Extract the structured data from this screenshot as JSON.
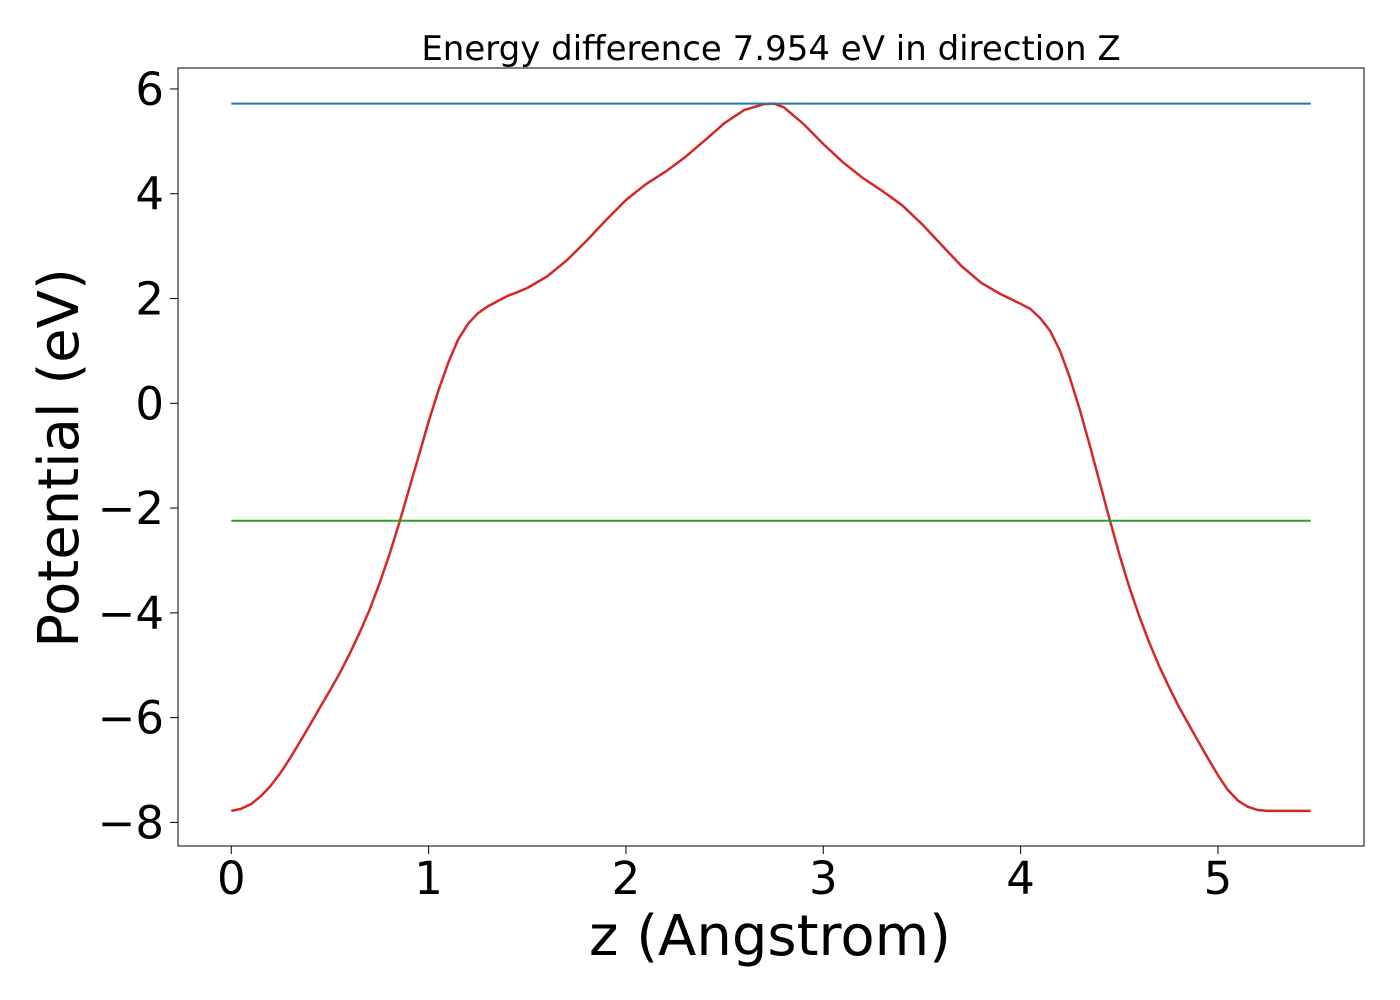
{
  "chart_data": {
    "type": "line",
    "title": "Energy difference 7.954 eV in direction Z",
    "xlabel": "z (Angstrom)",
    "ylabel": "Potential (eV)",
    "xlim": [
      -0.27,
      5.74
    ],
    "ylim": [
      -8.45,
      6.4
    ],
    "xticks": [
      0,
      1,
      2,
      3,
      4,
      5
    ],
    "yticks": [
      6,
      4,
      2,
      0,
      -2,
      -4,
      -6,
      -8
    ],
    "ytick_labels": [
      "6",
      "4",
      "2",
      "0",
      "−2",
      "−4",
      "−6",
      "−8"
    ],
    "grid": false,
    "series": [
      {
        "color": "#d62728",
        "x": [
          0.0,
          0.05,
          0.1,
          0.15,
          0.2,
          0.25,
          0.3,
          0.35,
          0.4,
          0.45,
          0.5,
          0.55,
          0.6,
          0.65,
          0.7,
          0.75,
          0.8,
          0.85,
          0.9,
          0.95,
          1.0,
          1.05,
          1.1,
          1.15,
          1.2,
          1.25,
          1.3,
          1.35,
          1.4,
          1.45,
          1.5,
          1.6,
          1.7,
          1.8,
          1.9,
          2.0,
          2.1,
          2.2,
          2.3,
          2.4,
          2.5,
          2.6,
          2.7,
          2.75,
          2.8,
          2.9,
          3.0,
          3.1,
          3.2,
          3.3,
          3.4,
          3.5,
          3.6,
          3.7,
          3.8,
          3.9,
          4.0,
          4.05,
          4.1,
          4.15,
          4.2,
          4.25,
          4.3,
          4.35,
          4.4,
          4.45,
          4.5,
          4.55,
          4.6,
          4.65,
          4.7,
          4.75,
          4.8,
          4.85,
          4.9,
          4.95,
          5.0,
          5.05,
          5.1,
          5.15,
          5.2,
          5.25,
          5.3,
          5.35,
          5.4,
          5.45,
          5.47
        ],
        "y": [
          -7.78,
          -7.74,
          -7.65,
          -7.5,
          -7.3,
          -7.05,
          -6.76,
          -6.45,
          -6.13,
          -5.8,
          -5.48,
          -5.15,
          -4.78,
          -4.38,
          -3.95,
          -3.45,
          -2.9,
          -2.3,
          -1.65,
          -1.0,
          -0.35,
          0.25,
          0.78,
          1.22,
          1.52,
          1.72,
          1.85,
          1.95,
          2.05,
          2.12,
          2.2,
          2.42,
          2.73,
          3.1,
          3.5,
          3.88,
          4.18,
          4.42,
          4.7,
          5.02,
          5.35,
          5.6,
          5.71,
          5.72,
          5.65,
          5.33,
          4.95,
          4.6,
          4.3,
          4.05,
          3.78,
          3.42,
          3.02,
          2.62,
          2.3,
          2.08,
          1.9,
          1.8,
          1.62,
          1.38,
          1.0,
          0.48,
          -0.12,
          -0.8,
          -1.5,
          -2.2,
          -2.88,
          -3.5,
          -4.05,
          -4.55,
          -5.0,
          -5.4,
          -5.78,
          -6.12,
          -6.45,
          -6.78,
          -7.1,
          -7.38,
          -7.58,
          -7.7,
          -7.76,
          -7.78,
          -7.78,
          -7.78,
          -7.78,
          -7.78,
          -7.78
        ]
      },
      {
        "color": "#1f77b4",
        "x": [
          0.0,
          5.47
        ],
        "y": [
          5.72,
          5.72
        ]
      },
      {
        "color": "#2ca02c",
        "x": [
          0.0,
          5.47
        ],
        "y": [
          -2.24,
          -2.24
        ]
      }
    ]
  }
}
